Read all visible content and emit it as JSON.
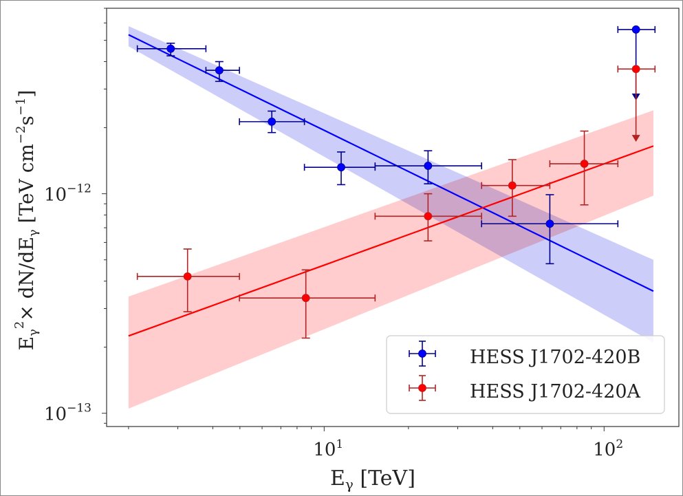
{
  "chart_data": {
    "type": "scatter",
    "title": "",
    "xlabel": "E_γ [TeV]",
    "ylabel": "E_γ² × dN/dE_γ [TeV cm⁻² s⁻¹]",
    "xscale": "log",
    "yscale": "log",
    "xlim": [
      1.67,
      185
    ],
    "ylim": [
      8.7e-14,
      7e-12
    ],
    "grid": false,
    "legend_position": "bottom-right",
    "x_ticks": [
      {
        "value": 10,
        "label_base": "10",
        "label_exp": "1"
      },
      {
        "value": 100,
        "label_base": "10",
        "label_exp": "2"
      }
    ],
    "y_ticks": [
      {
        "value": 1e-12,
        "label_base": "10",
        "label_exp": "−12"
      },
      {
        "value": 1e-13,
        "label_base": "10",
        "label_exp": "−13"
      }
    ],
    "series": [
      {
        "name": "HESS J1702-420B",
        "color": "#0000ff",
        "errcolor": "#00008b",
        "bandcolor": "#c8c8fa",
        "fit": {
          "x": [
            2.0,
            150
          ],
          "y": [
            5.3e-12,
            3.6e-13
          ],
          "band_upper": [
            5.8e-12,
            5e-13
          ],
          "band_lower": [
            4.7e-12,
            2.1e-13
          ]
        },
        "points": [
          {
            "x": 2.83,
            "y": 4.58e-12,
            "xlo": 2.15,
            "xhi": 3.78,
            "ylo": 4.25e-12,
            "yhi": 4.85e-12
          },
          {
            "x": 4.22,
            "y": 3.65e-12,
            "xlo": 3.78,
            "xhi": 4.98,
            "ylo": 3.25e-12,
            "yhi": 4e-12
          },
          {
            "x": 6.5,
            "y": 2.13e-12,
            "xlo": 4.98,
            "xhi": 8.5,
            "ylo": 1.9e-12,
            "yhi": 2.38e-12
          },
          {
            "x": 11.5,
            "y": 1.32e-12,
            "xlo": 8.5,
            "xhi": 15.2,
            "ylo": 1.1e-12,
            "yhi": 1.55e-12
          },
          {
            "x": 23.5,
            "y": 1.34e-12,
            "xlo": 15.2,
            "xhi": 36.5,
            "ylo": 1.11e-12,
            "yhi": 1.57e-12
          },
          {
            "x": 64,
            "y": 7.3e-13,
            "xlo": 36.5,
            "xhi": 112,
            "ylo": 4.8e-13,
            "yhi": 9.9e-13
          },
          {
            "x": 130,
            "y": 5.6e-12,
            "xlo": 112,
            "xhi": 152,
            "upper_limit": true,
            "arrow_to": 2.7e-12
          }
        ]
      },
      {
        "name": "HESS J1702-420A",
        "color": "#ff0000",
        "errcolor": "#b22222",
        "bandcolor": "#ffc8c8",
        "fit": {
          "x": [
            2.0,
            150
          ],
          "y": [
            2.25e-13,
            1.65e-12
          ],
          "band_upper": [
            3.4e-13,
            2.4e-12
          ],
          "band_lower": [
            1.05e-13,
            9.8e-13
          ]
        },
        "points": [
          {
            "x": 3.25,
            "y": 4.2e-13,
            "xlo": 2.15,
            "xhi": 4.98,
            "ylo": 2.9e-13,
            "yhi": 5.6e-13
          },
          {
            "x": 8.6,
            "y": 3.35e-13,
            "xlo": 4.98,
            "xhi": 15.2,
            "ylo": 2.2e-13,
            "yhi": 4.5e-13
          },
          {
            "x": 23.5,
            "y": 7.9e-13,
            "xlo": 15.2,
            "xhi": 36.5,
            "ylo": 6.1e-13,
            "yhi": 1e-12
          },
          {
            "x": 47,
            "y": 1.09e-12,
            "xlo": 36.5,
            "xhi": 64,
            "ylo": 7.9e-13,
            "yhi": 1.43e-12
          },
          {
            "x": 85,
            "y": 1.37e-12,
            "xlo": 64,
            "xhi": 112,
            "ylo": 8.9e-13,
            "yhi": 1.93e-12
          },
          {
            "x": 130,
            "y": 3.7e-12,
            "xlo": 112,
            "xhi": 152,
            "upper_limit": true,
            "arrow_to": 1.75e-12
          }
        ]
      }
    ]
  },
  "labels": {
    "xlabel_main": "E",
    "xlabel_sub": "γ",
    "xlabel_unit": " [TeV]",
    "ylabel_text": "E γ ² × dN/dE γ  [TeV cm⁻² s⁻¹]",
    "legend_b": "HESS J1702-420B",
    "legend_a": "HESS J1702-420A"
  }
}
